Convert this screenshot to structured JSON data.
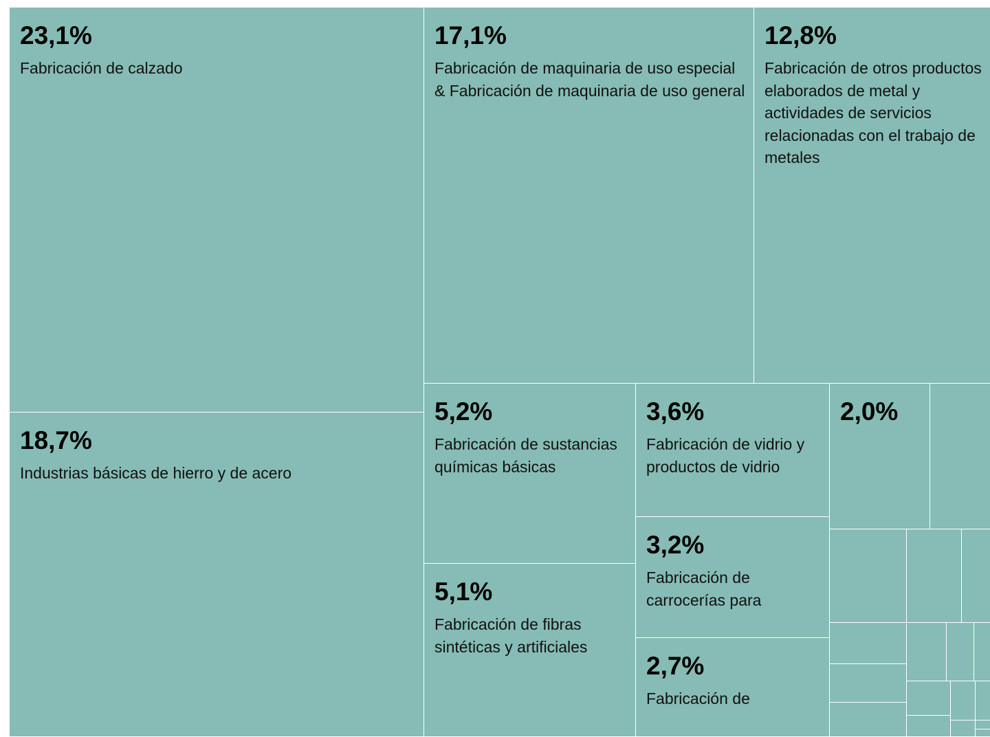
{
  "chart_data": {
    "type": "treemap",
    "color": "#86bcb5",
    "categories": [
      "Fabricación de calzado",
      "Industrias básicas de hierro y de acero",
      "Fabricación de maquinaria de uso especial & Fabricación de maquinaria de uso general",
      "Fabricación de otros productos elaborados de metal y actividades de servicios relacionadas con el trabajo de metales",
      "Fabricación de sustancias químicas básicas",
      "Fabricación de fibras sintéticas y artificiales",
      "Fabricación de vidrio y productos de vidrio",
      "Fabricación de carrocerías para",
      "Fabricación de",
      null,
      null,
      null,
      null,
      null,
      null,
      null,
      null,
      null,
      null,
      null,
      null,
      null,
      null,
      null,
      null,
      null,
      null
    ],
    "values": [
      23.1,
      18.7,
      17.1,
      12.8,
      5.2,
      5.1,
      3.6,
      3.2,
      2.7,
      2.0,
      1.2,
      1.0,
      0.7,
      0.4,
      0.4,
      0.4,
      0.4,
      0.3,
      0.2,
      0.1,
      0.2,
      0.1,
      0.1,
      0.1,
      0.1,
      0.1,
      0.1
    ],
    "value_labels": [
      "23,1%",
      "18,7%",
      "17,1%",
      "12,8%",
      "5,2%",
      "5,1%",
      "3,6%",
      "3,2%",
      "2,7%",
      "2,0%",
      null,
      null,
      null,
      null,
      null,
      null,
      null,
      null,
      null,
      null,
      null,
      null,
      null,
      null,
      null,
      null,
      null
    ]
  }
}
